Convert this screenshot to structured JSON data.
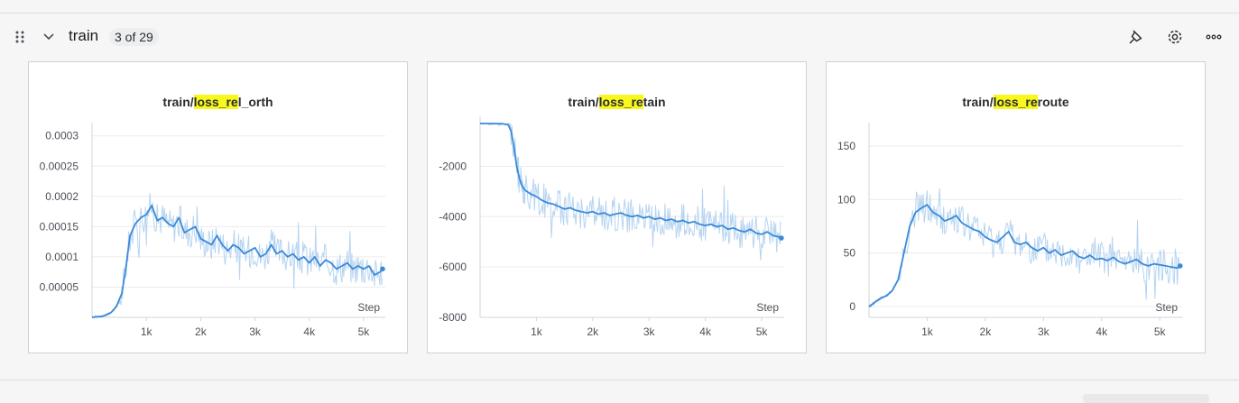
{
  "section": {
    "title": "train",
    "count": "3 of 29",
    "icons": {
      "drag": "drag-handle-icon",
      "collapse": "chevron-down-icon",
      "pin": "pin-icon",
      "settings": "gear-icon",
      "more": "more-horizontal-icon"
    }
  },
  "colors": {
    "series": "#3a8ad8",
    "raw": "#a9cdef",
    "highlight": "#f8f81d"
  },
  "chart_data": [
    {
      "type": "line",
      "title_parts": [
        "train/",
        "loss_re",
        "l_orth"
      ],
      "xlabel": "Step",
      "xticks": [
        1000,
        2000,
        3000,
        4000,
        5000
      ],
      "xtick_labels": [
        "1k",
        "2k",
        "3k",
        "4k",
        "5k"
      ],
      "xlim": [
        0,
        5400
      ],
      "yticks": [
        5e-05,
        0.0001,
        0.00015,
        0.0002,
        0.00025,
        0.0003
      ],
      "ytick_labels": [
        "0.00005",
        "0.0001",
        "0.00015",
        "0.0002",
        "0.00025",
        "0.0003"
      ],
      "ylim": [
        0,
        0.00031
      ],
      "grid": true,
      "series": [
        {
          "x": [
            0,
            200,
            350,
            450,
            550,
            620,
            700,
            800,
            900,
            1000,
            1100,
            1200,
            1300,
            1400,
            1500,
            1600,
            1700,
            1800,
            1900,
            2000,
            2100,
            2200,
            2300,
            2400,
            2500,
            2600,
            2700,
            2800,
            2900,
            3000,
            3100,
            3200,
            3300,
            3400,
            3500,
            3600,
            3700,
            3800,
            3900,
            4000,
            4100,
            4200,
            4300,
            4400,
            4500,
            4600,
            4700,
            4800,
            4900,
            5000,
            5100,
            5200,
            5300,
            5350
          ],
          "values": [
            0,
            2e-06,
            8e-06,
            1.8e-05,
            4e-05,
            8e-05,
            0.000135,
            0.000155,
            0.000165,
            0.00017,
            0.000185,
            0.00016,
            0.000165,
            0.000155,
            0.00015,
            0.000165,
            0.00014,
            0.000145,
            0.00015,
            0.00013,
            0.000125,
            0.00012,
            0.000135,
            0.00012,
            0.00011,
            0.00012,
            0.000115,
            0.000105,
            0.00011,
            0.000115,
            0.0001,
            0.000105,
            0.00012,
            0.000105,
            0.00011,
            0.0001,
            0.000105,
            9.5e-05,
            0.0001,
            9e-05,
            0.0001,
            8.5e-05,
            9.5e-05,
            9e-05,
            8e-05,
            8.5e-05,
            9e-05,
            8e-05,
            8.5e-05,
            8e-05,
            8.5e-05,
            7e-05,
            7.5e-05,
            8e-05
          ]
        }
      ]
    },
    {
      "type": "line",
      "title_parts": [
        "train/",
        "loss_re",
        "tain"
      ],
      "xlabel": "Step",
      "xticks": [
        1000,
        2000,
        3000,
        4000,
        5000
      ],
      "xtick_labels": [
        "1k",
        "2k",
        "3k",
        "4k",
        "5k"
      ],
      "xlim": [
        0,
        5400
      ],
      "yticks": [
        -8000,
        -6000,
        -4000,
        -2000
      ],
      "ytick_labels": [
        "-8000",
        "-6000",
        "-4000",
        "-2000"
      ],
      "ylim": [
        -8000,
        -300
      ],
      "grid": true,
      "series": [
        {
          "x": [
            0,
            200,
            400,
            500,
            550,
            600,
            650,
            700,
            750,
            800,
            900,
            1000,
            1100,
            1200,
            1300,
            1400,
            1500,
            1600,
            1700,
            1800,
            1900,
            2000,
            2100,
            2200,
            2300,
            2400,
            2500,
            2600,
            2700,
            2800,
            2900,
            3000,
            3100,
            3200,
            3300,
            3400,
            3500,
            3600,
            3700,
            3800,
            3900,
            4000,
            4100,
            4200,
            4300,
            4400,
            4500,
            4600,
            4700,
            4800,
            4900,
            5000,
            5100,
            5200,
            5300,
            5350
          ],
          "values": [
            -300,
            -300,
            -310,
            -350,
            -600,
            -1200,
            -2000,
            -2500,
            -2800,
            -2950,
            -3100,
            -3200,
            -3350,
            -3450,
            -3500,
            -3600,
            -3700,
            -3650,
            -3750,
            -3800,
            -3850,
            -3800,
            -3900,
            -3850,
            -3950,
            -3900,
            -3850,
            -3950,
            -4000,
            -3950,
            -4050,
            -4000,
            -4100,
            -4050,
            -4150,
            -4100,
            -4200,
            -4150,
            -4250,
            -4200,
            -4300,
            -4350,
            -4300,
            -4400,
            -4350,
            -4500,
            -4450,
            -4550,
            -4600,
            -4500,
            -4650,
            -4700,
            -4600,
            -4750,
            -4800,
            -4850
          ]
        }
      ]
    },
    {
      "type": "line",
      "title_parts": [
        "train/",
        "loss_re",
        "route"
      ],
      "xlabel": "Step",
      "xticks": [
        1000,
        2000,
        3000,
        4000,
        5000
      ],
      "xtick_labels": [
        "1k",
        "2k",
        "3k",
        "4k",
        "5k"
      ],
      "xlim": [
        0,
        5400
      ],
      "yticks": [
        0,
        50,
        100,
        150
      ],
      "ytick_labels": [
        "0",
        "50",
        "100",
        "150"
      ],
      "ylim": [
        -10,
        165
      ],
      "grid": true,
      "series": [
        {
          "x": [
            0,
            100,
            200,
            300,
            400,
            500,
            600,
            700,
            800,
            900,
            1000,
            1100,
            1200,
            1300,
            1400,
            1500,
            1600,
            1700,
            1800,
            1900,
            2000,
            2100,
            2200,
            2300,
            2400,
            2500,
            2600,
            2700,
            2800,
            2900,
            3000,
            3100,
            3200,
            3300,
            3400,
            3500,
            3600,
            3700,
            3800,
            3900,
            4000,
            4100,
            4200,
            4300,
            4400,
            4500,
            4600,
            4700,
            4800,
            4900,
            5000,
            5100,
            5200,
            5300,
            5350
          ],
          "values": [
            0,
            4,
            8,
            10,
            15,
            25,
            50,
            75,
            88,
            92,
            95,
            88,
            85,
            80,
            82,
            85,
            78,
            75,
            72,
            70,
            65,
            62,
            60,
            65,
            70,
            60,
            58,
            60,
            55,
            52,
            55,
            50,
            53,
            48,
            50,
            52,
            47,
            45,
            48,
            44,
            45,
            43,
            46,
            42,
            40,
            42,
            44,
            40,
            38,
            40,
            39,
            38,
            37,
            36,
            38
          ]
        }
      ]
    }
  ]
}
